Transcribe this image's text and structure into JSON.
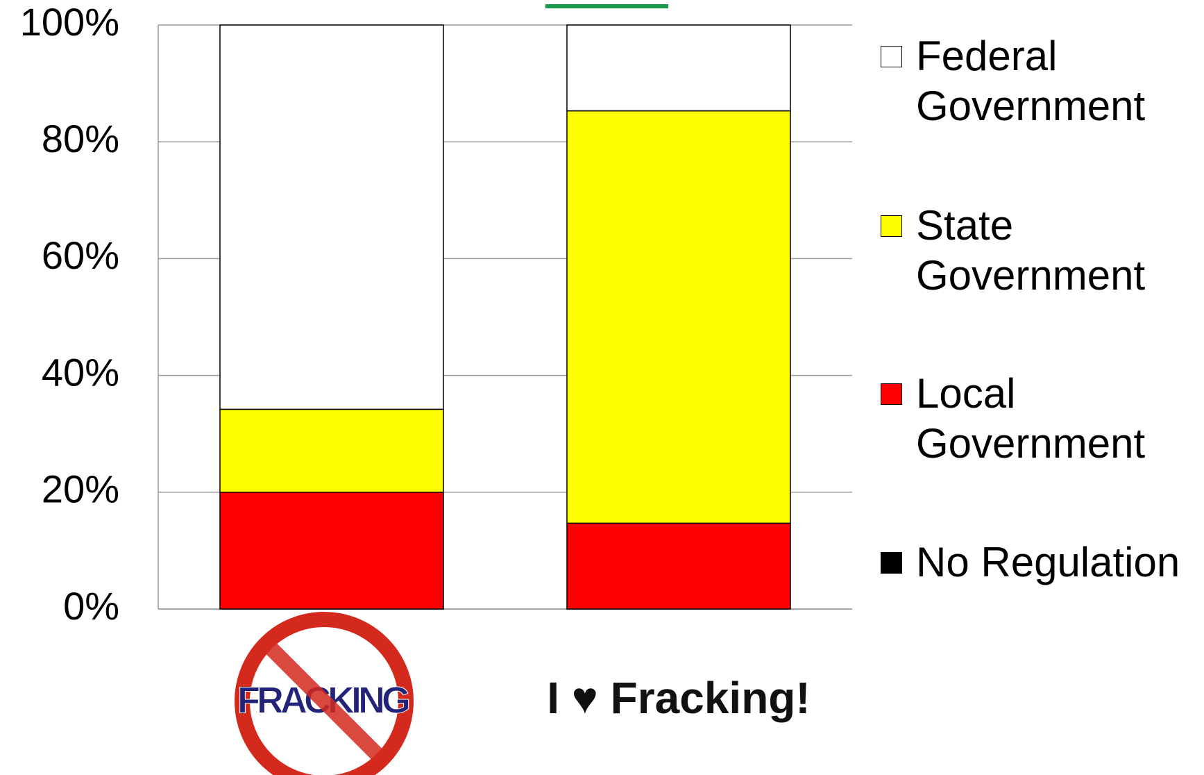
{
  "chart_data": {
    "type": "stacked_bar",
    "categories": [
      "FRACKING",
      "I ♥ Fracking!"
    ],
    "series": [
      {
        "name": "No Regulation",
        "color": "#000000",
        "values": [
          0,
          0
        ]
      },
      {
        "name": "Local Government",
        "color": "#ff0000",
        "values": [
          20,
          14.7
        ]
      },
      {
        "name": "State Government",
        "color": "#ffff00",
        "values": [
          14.2,
          70.6
        ]
      },
      {
        "name": "Federal Government",
        "color": "#ffffff",
        "values": [
          65.8,
          14.7
        ]
      }
    ],
    "ylim": [
      0,
      100
    ],
    "yticks": [
      {
        "value": 0,
        "label": "0%"
      },
      {
        "value": 20,
        "label": "20%"
      },
      {
        "value": 40,
        "label": "40%"
      },
      {
        "value": 60,
        "label": "60%"
      },
      {
        "value": 80,
        "label": "80%"
      },
      {
        "value": 100,
        "label": "100%"
      }
    ],
    "grid": true,
    "legend": "right"
  }
}
